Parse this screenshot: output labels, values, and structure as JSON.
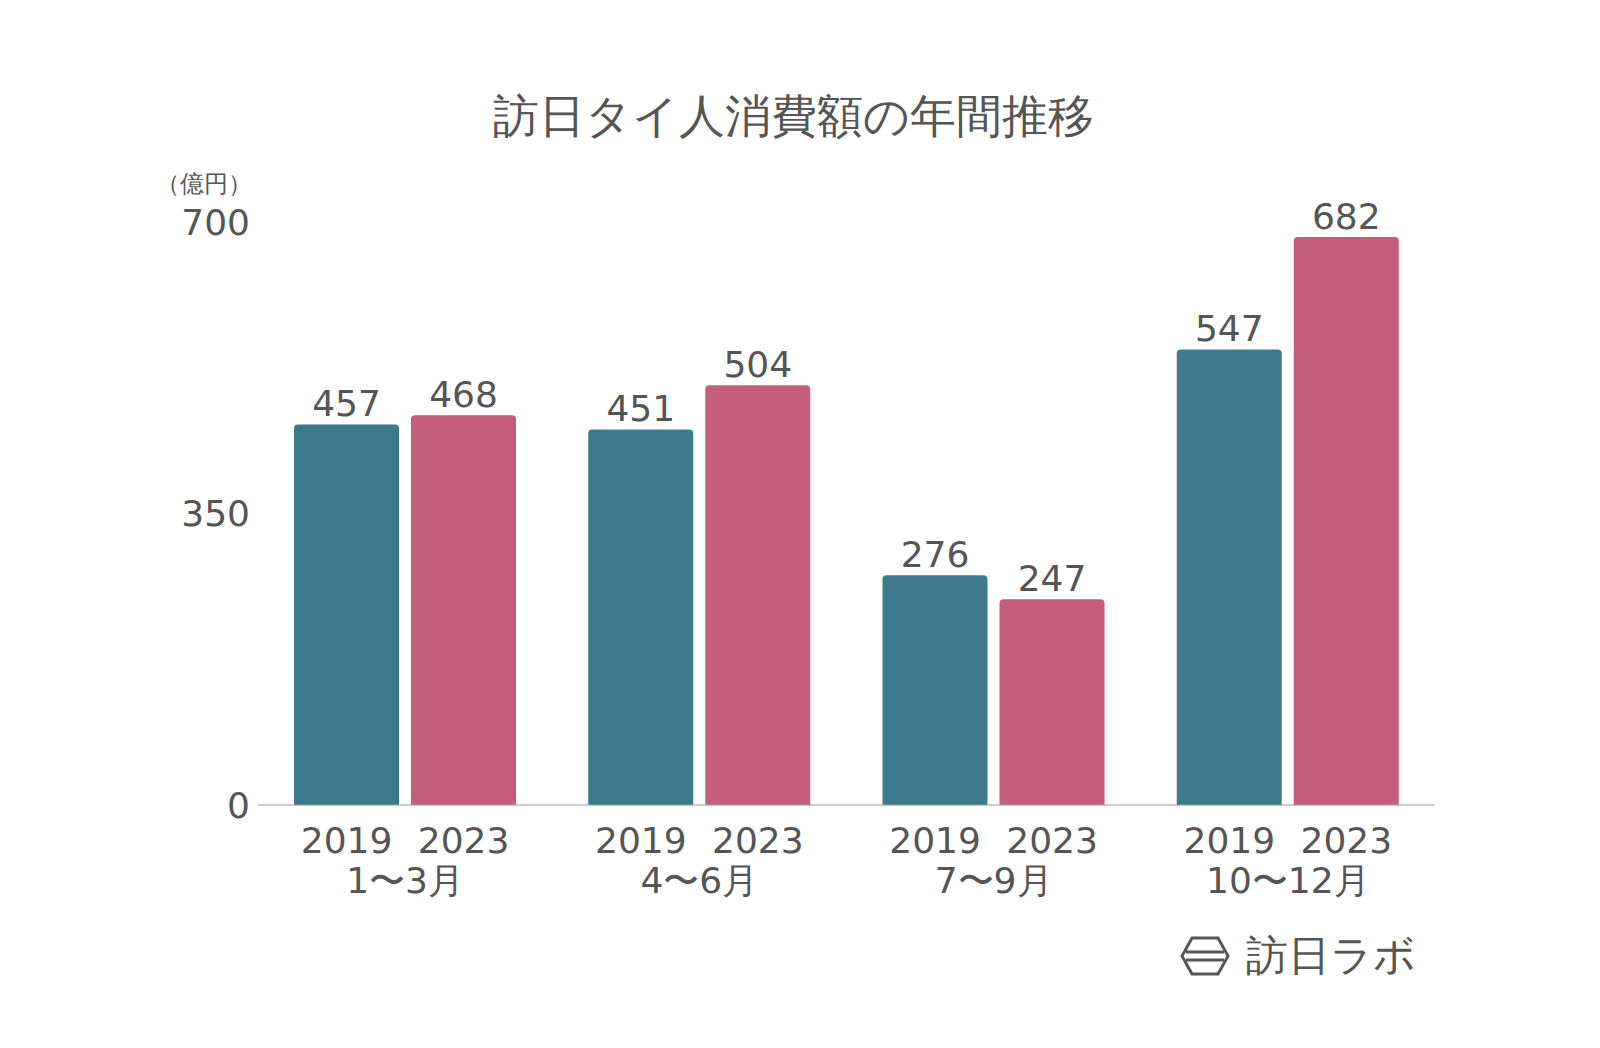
{
  "chart_data": {
    "type": "bar",
    "title": "訪日タイ人消費額の年間推移",
    "y_label": "（億円）",
    "categories": [
      "1〜3月",
      "4〜6月",
      "7〜9月",
      "10〜12月"
    ],
    "series": [
      {
        "name": "2019",
        "color": "#3d7a8c",
        "values": [
          457,
          451,
          276,
          547
        ]
      },
      {
        "name": "2023",
        "color": "#c45e7c",
        "values": [
          468,
          504,
          247,
          682
        ]
      }
    ],
    "ylim": [
      0,
      700
    ],
    "yticks": [
      0,
      350,
      700
    ],
    "grid": false,
    "data_labels": true,
    "annotations": [
      "訪日ラボ"
    ]
  }
}
